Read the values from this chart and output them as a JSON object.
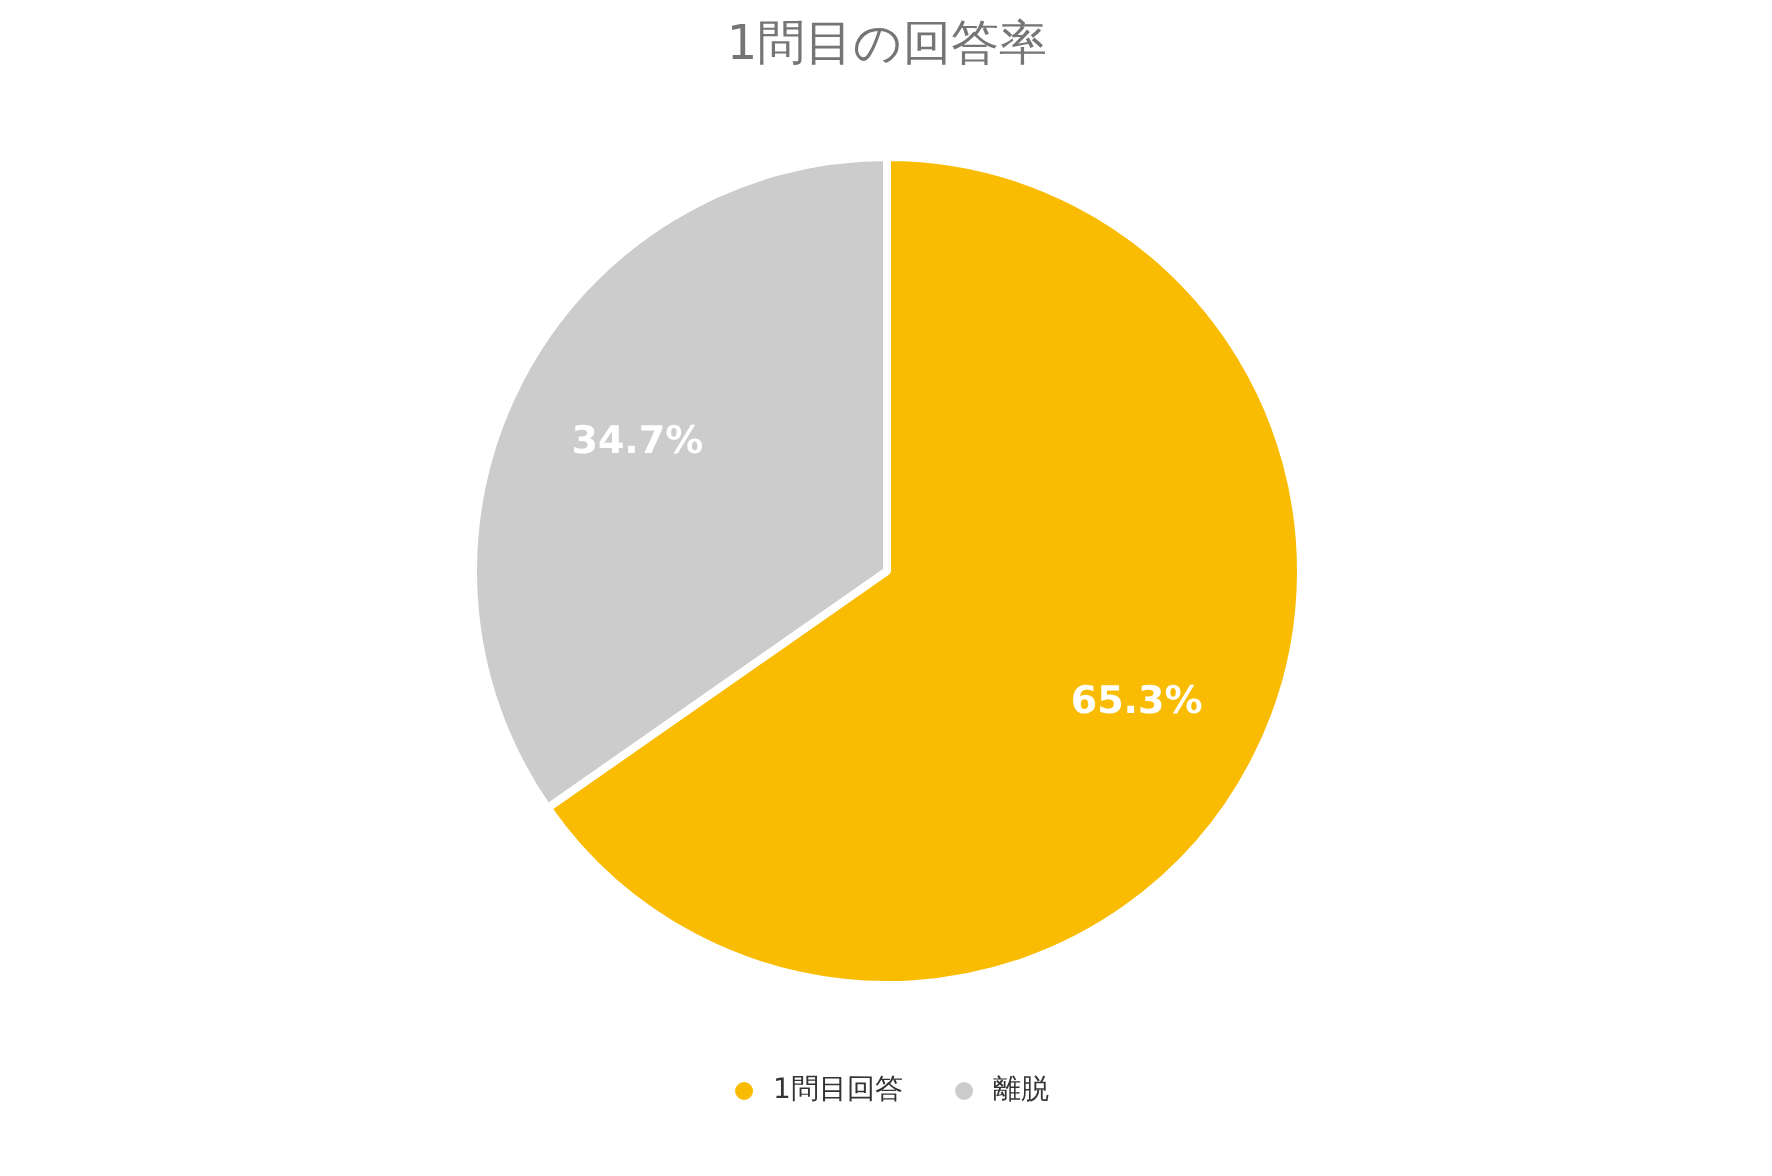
{
  "chart_data": {
    "type": "pie",
    "title": "1問目の回答率",
    "categories": [
      "1問目回答",
      "離脱"
    ],
    "values": [
      65.3,
      34.7
    ],
    "colors": [
      "#f9bc02",
      "#cccccc"
    ],
    "value_labels": [
      "65.3%",
      "34.7%"
    ],
    "legend": "bottom"
  }
}
